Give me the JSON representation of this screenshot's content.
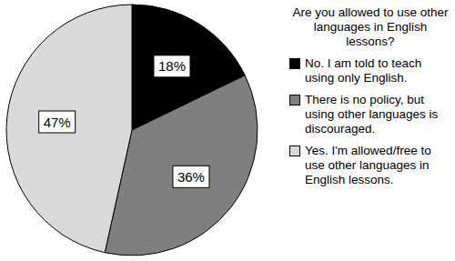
{
  "chart_data": {
    "type": "pie",
    "title": "Are you allowed to use other languages in English lessons?",
    "categories": [
      "No. I am told to teach using only English.",
      "There is no policy, but using other languages is discouraged.",
      "Yes. I'm allowed/free to use other languages in English lessons."
    ],
    "values": [
      18,
      36,
      47
    ],
    "value_labels": [
      "18%",
      "36%",
      "47%"
    ],
    "colors": [
      "#000000",
      "#7f7f7f",
      "#d9d9d9"
    ],
    "data_labels": true,
    "legend": "right"
  }
}
